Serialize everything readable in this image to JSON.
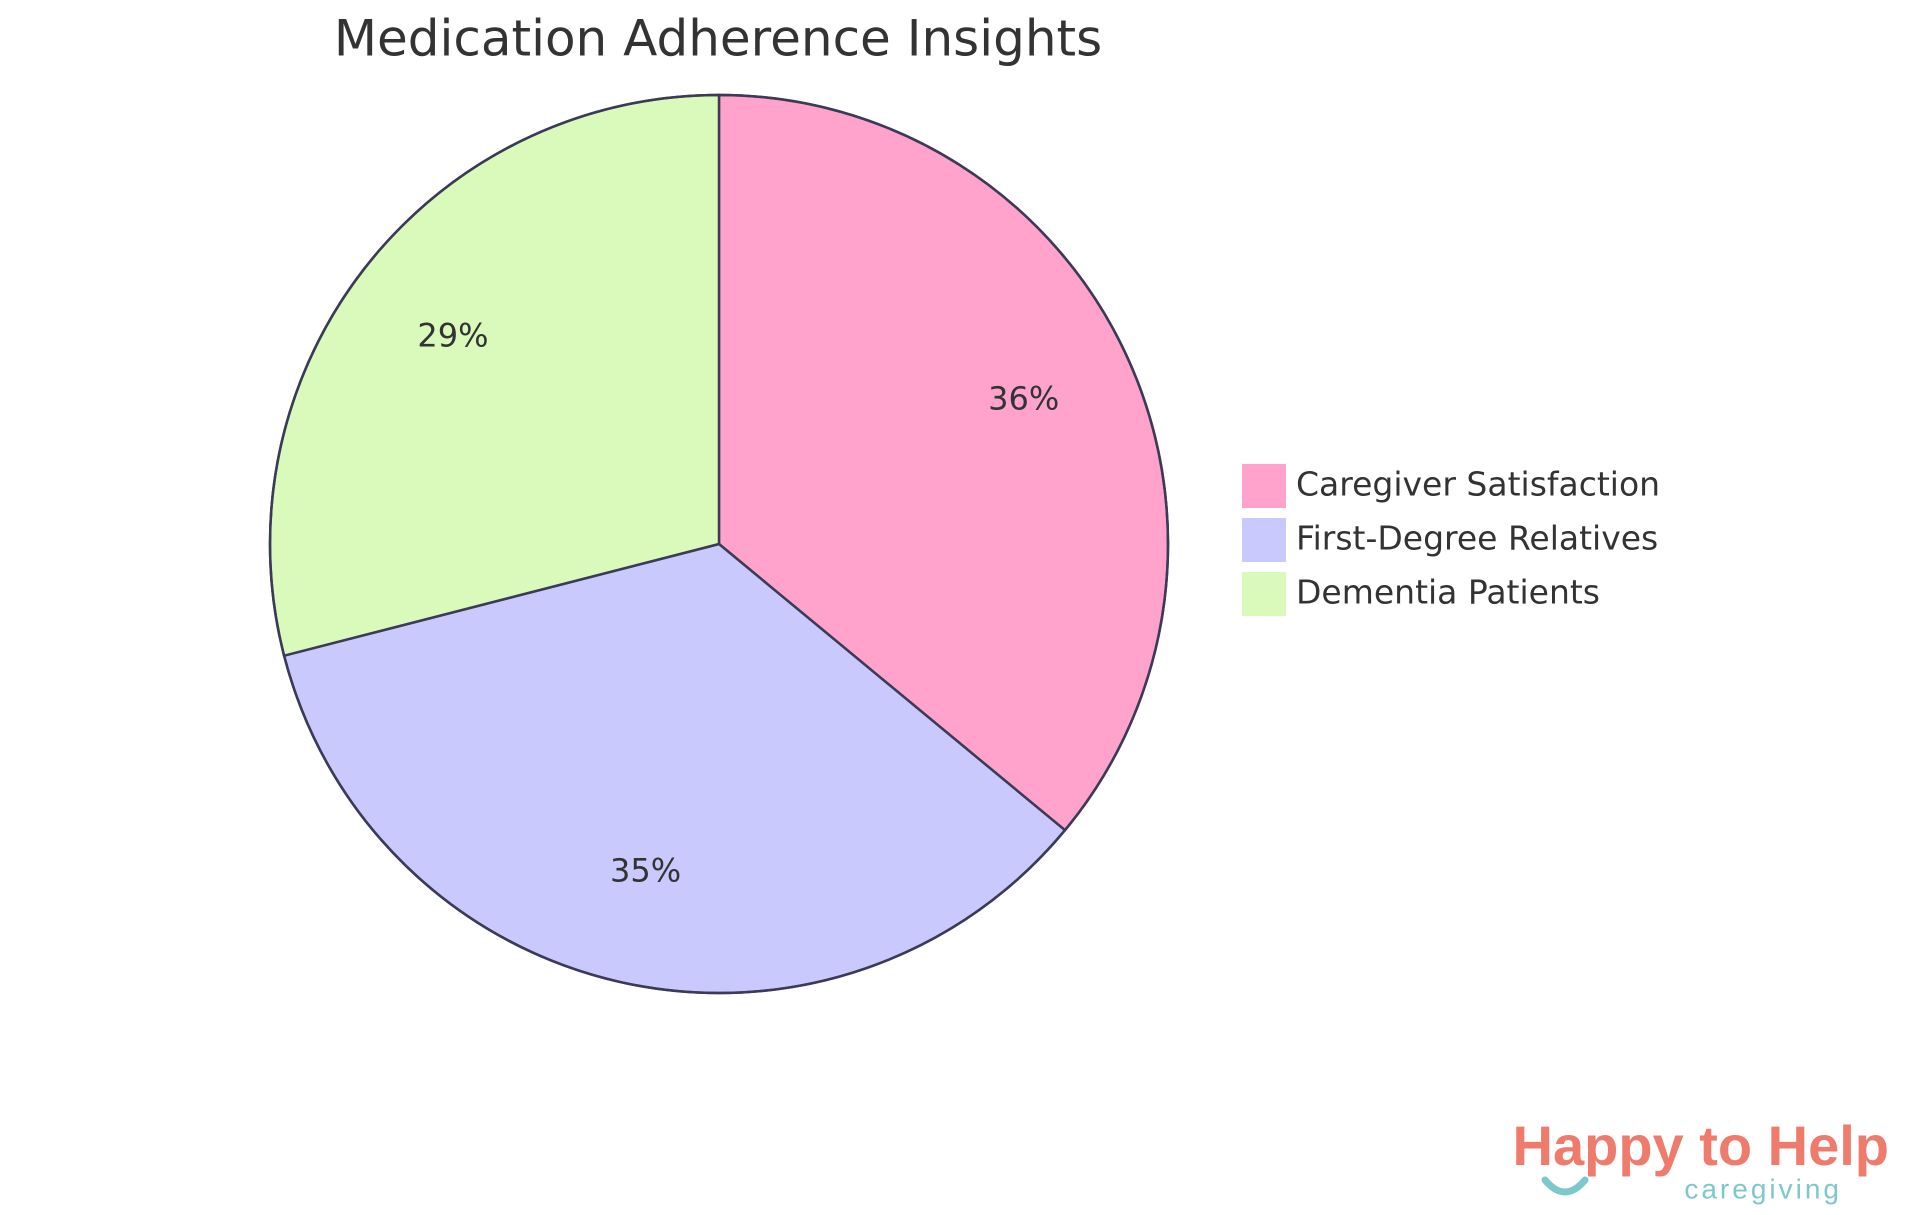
{
  "chart_data": {
    "type": "pie",
    "title": "Medication Adherence Insights",
    "categories": [
      "Caregiver Satisfaction",
      "First-Degree Relatives",
      "Dementia Patients"
    ],
    "values": [
      36,
      35,
      29
    ],
    "value_labels": [
      "36%",
      "35%",
      "29%"
    ],
    "colors": [
      "#ffa3cd",
      "#c9c9fe",
      "#dafabb"
    ],
    "legend": "right"
  },
  "logo": {
    "title": "Happy to Help",
    "subtitle": "caregiving"
  }
}
